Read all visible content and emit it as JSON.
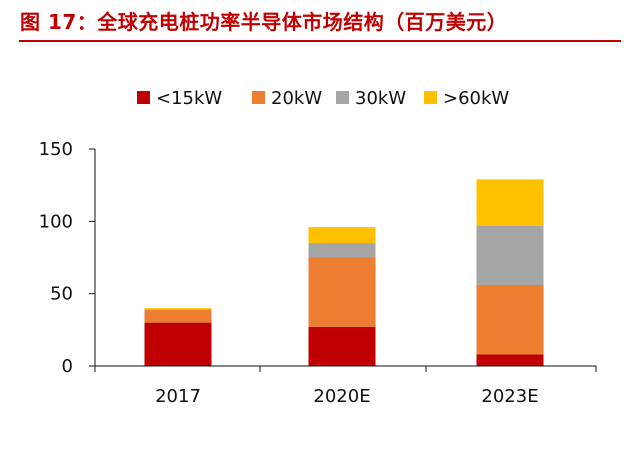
{
  "figure": {
    "title": "图 17：全球充电桩功率半导体市场结构（百万美元）"
  },
  "chart_data": {
    "type": "bar",
    "stacked": true,
    "categories": [
      "2017",
      "2020E",
      "2023E"
    ],
    "series": [
      {
        "name": "<15kW",
        "color": "#c00000",
        "values": [
          30,
          27,
          8
        ]
      },
      {
        "name": "20kW",
        "color": "#ed7d31",
        "values": [
          9,
          48,
          48
        ]
      },
      {
        "name": "30kW",
        "color": "#a5a5a5",
        "values": [
          0,
          10,
          41
        ]
      },
      {
        "name": ">60kW",
        "color": "#ffc000",
        "values": [
          1,
          11,
          32
        ]
      }
    ],
    "ylim": [
      0,
      150
    ],
    "yticks": [
      "0",
      "50",
      "100",
      "150"
    ],
    "xlabel": "",
    "ylabel": "",
    "legend_position": "top",
    "grid": false
  }
}
